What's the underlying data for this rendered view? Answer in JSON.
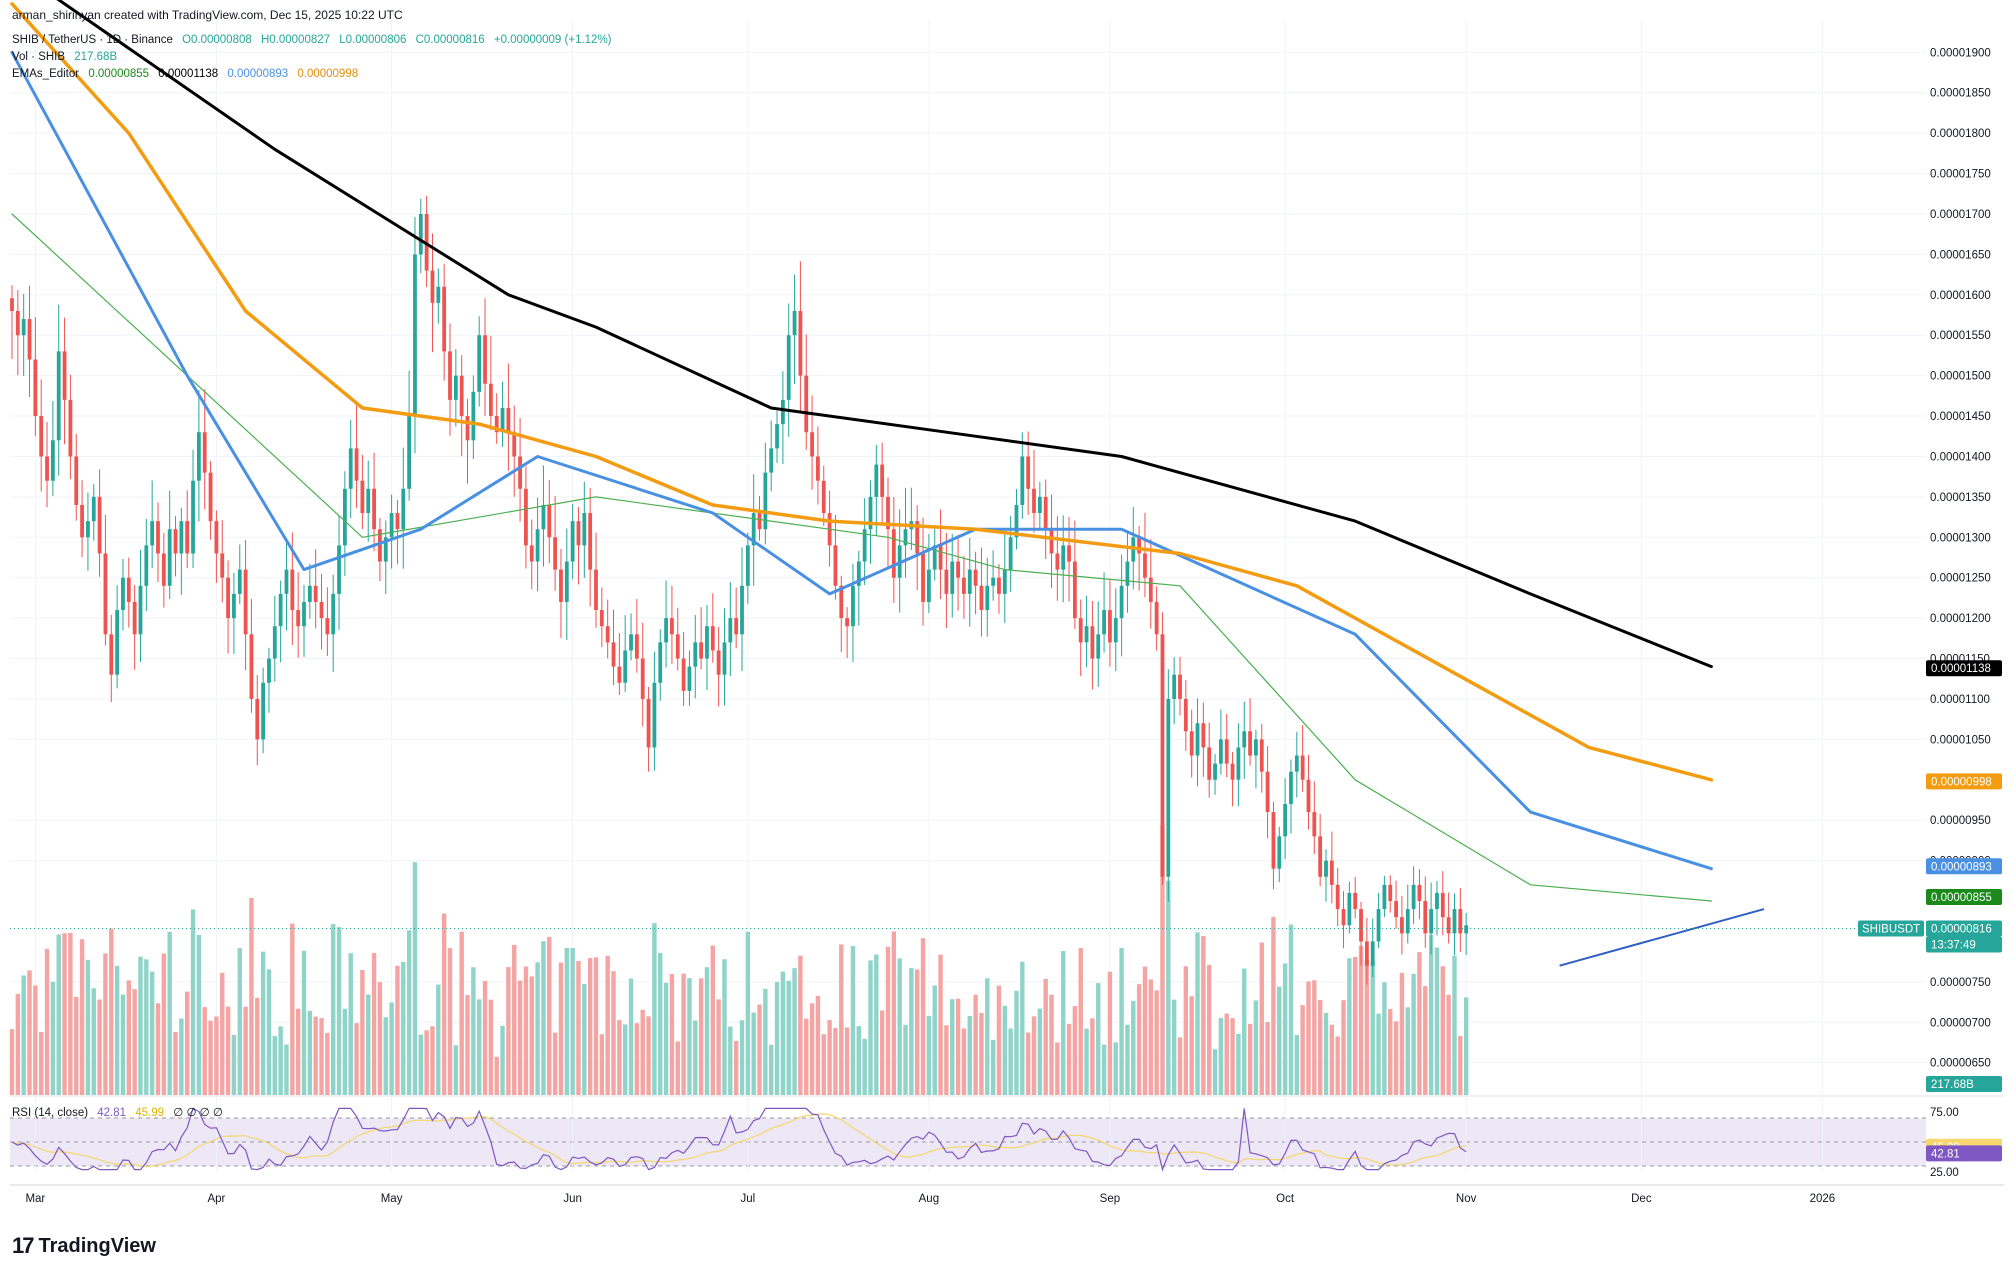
{
  "header": "arman_shirinyan created with TradingView.com, Dec 15, 2025 10:22 UTC",
  "legend": {
    "symbol": "SHIB / TetherUS · 1D · Binance",
    "ohlc": {
      "o": "O0.00000808",
      "h": "H0.00000827",
      "l": "L0.00000806",
      "c": "C0.00000816",
      "chg": "+0.00000009 (+1.12%)"
    },
    "vol_name": "Vol · SHIB",
    "vol_value": "217.68B",
    "ema_name": "EMAs_Editor",
    "ema_values": [
      "0.00000855",
      "0.00001138",
      "0.00000893",
      "0.00000998"
    ],
    "rsi_name": "RSI (14, close)",
    "rsi_value": "42.81",
    "rsi_ma": "45.99",
    "rsi_extra": "∅ ∅ ∅ ∅"
  },
  "brand": "TradingView",
  "colors": {
    "up": "#26a69a",
    "down": "#ef5350",
    "vol_up": "#8fd3c9",
    "vol_down": "#f4a5a3",
    "ema20": "#4caf50",
    "ema50": "#4a90e2",
    "ema100": "#f39c12",
    "ema200": "#000000",
    "rsi": "#7e57c2",
    "rsi_ma": "#f5d76e",
    "rsi_band": "#ede7f6",
    "trend": "#2f5fc4"
  },
  "chart_data": {
    "type": "candlestick",
    "symbol": "SHIBUSDT",
    "price_axis": {
      "ylim": [
        6.1e-06,
        1.94e-05
      ],
      "ticks": [
        "0.00001900",
        "0.00001850",
        "0.00001800",
        "0.00001750",
        "0.00001700",
        "0.00001650",
        "0.00001600",
        "0.00001550",
        "0.00001500",
        "0.00001450",
        "0.00001400",
        "0.00001350",
        "0.00001300",
        "0.00001250",
        "0.00001200",
        "0.00001150",
        "0.00001100",
        "0.00001050",
        "0.00000950",
        "0.00000900",
        "0.00000750",
        "0.00000700",
        "0.00000650"
      ]
    },
    "time_axis": {
      "labels": [
        "Mar",
        "Apr",
        "May",
        "Jun",
        "Jul",
        "Aug",
        "Sep",
        "Oct",
        "Nov",
        "Dec",
        "2026"
      ],
      "label_days": [
        4,
        35,
        65,
        96,
        126,
        157,
        188,
        218,
        249,
        279,
        310
      ]
    },
    "last_price": {
      "symbol": "SHIBUSDT",
      "value": "0.00000816",
      "countdown": "13:37:49"
    },
    "price_tags": [
      {
        "label": "0.00001138",
        "value": 1.138e-05,
        "color": "#000000"
      },
      {
        "label": "0.00000998",
        "value": 9.98e-06,
        "color": "#f39c12"
      },
      {
        "label": "0.00000893",
        "value": 8.93e-06,
        "color": "#4a90e2"
      },
      {
        "label": "0.00000855",
        "value": 8.55e-06,
        "color": "#1b8a1b"
      }
    ],
    "volume_tag": "217.68B",
    "closes": [
      1.58e-05,
      1.55e-05,
      1.57e-05,
      1.52e-05,
      1.45e-05,
      1.4e-05,
      1.37e-05,
      1.42e-05,
      1.53e-05,
      1.47e-05,
      1.4e-05,
      1.34e-05,
      1.3e-05,
      1.32e-05,
      1.35e-05,
      1.28e-05,
      1.18e-05,
      1.13e-05,
      1.21e-05,
      1.25e-05,
      1.22e-05,
      1.18e-05,
      1.24e-05,
      1.29e-05,
      1.32e-05,
      1.28e-05,
      1.24e-05,
      1.31e-05,
      1.28e-05,
      1.32e-05,
      1.28e-05,
      1.37e-05,
      1.43e-05,
      1.38e-05,
      1.32e-05,
      1.28e-05,
      1.25e-05,
      1.2e-05,
      1.23e-05,
      1.26e-05,
      1.18e-05,
      1.1e-05,
      1.05e-05,
      1.12e-05,
      1.15e-05,
      1.19e-05,
      1.23e-05,
      1.26e-05,
      1.21e-05,
      1.19e-05,
      1.22e-05,
      1.24e-05,
      1.22e-05,
      1.2e-05,
      1.18e-05,
      1.23e-05,
      1.29e-05,
      1.36e-05,
      1.41e-05,
      1.37e-05,
      1.33e-05,
      1.36e-05,
      1.31e-05,
      1.27e-05,
      1.3e-05,
      1.33e-05,
      1.31e-05,
      1.36e-05,
      1.45e-05,
      1.65e-05,
      1.7e-05,
      1.63e-05,
      1.59e-05,
      1.61e-05,
      1.53e-05,
      1.47e-05,
      1.5e-05,
      1.45e-05,
      1.42e-05,
      1.48e-05,
      1.55e-05,
      1.49e-05,
      1.45e-05,
      1.43e-05,
      1.46e-05,
      1.43e-05,
      1.4e-05,
      1.36e-05,
      1.29e-05,
      1.27e-05,
      1.31e-05,
      1.34e-05,
      1.3e-05,
      1.26e-05,
      1.22e-05,
      1.27e-05,
      1.32e-05,
      1.29e-05,
      1.33e-05,
      1.26e-05,
      1.21e-05,
      1.19e-05,
      1.17e-05,
      1.14e-05,
      1.12e-05,
      1.16e-05,
      1.18e-05,
      1.15e-05,
      1.1e-05,
      1.04e-05,
      1.12e-05,
      1.17e-05,
      1.2e-05,
      1.18e-05,
      1.15e-05,
      1.11e-05,
      1.14e-05,
      1.17e-05,
      1.15e-05,
      1.19e-05,
      1.16e-05,
      1.13e-05,
      1.17e-05,
      1.2e-05,
      1.18e-05,
      1.24e-05,
      1.29e-05,
      1.33e-05,
      1.31e-05,
      1.38e-05,
      1.41e-05,
      1.44e-05,
      1.47e-05,
      1.55e-05,
      1.58e-05,
      1.5e-05,
      1.43e-05,
      1.4e-05,
      1.37e-05,
      1.33e-05,
      1.29e-05,
      1.24e-05,
      1.2e-05,
      1.19e-05,
      1.24e-05,
      1.27e-05,
      1.31e-05,
      1.35e-05,
      1.39e-05,
      1.35e-05,
      1.31e-05,
      1.25e-05,
      1.29e-05,
      1.31e-05,
      1.32e-05,
      1.28e-05,
      1.22e-05,
      1.26e-05,
      1.29e-05,
      1.26e-05,
      1.23e-05,
      1.27e-05,
      1.25e-05,
      1.23e-05,
      1.26e-05,
      1.24e-05,
      1.21e-05,
      1.24e-05,
      1.25e-05,
      1.23e-05,
      1.26e-05,
      1.3e-05,
      1.34e-05,
      1.4e-05,
      1.36e-05,
      1.33e-05,
      1.35e-05,
      1.31e-05,
      1.28e-05,
      1.26e-05,
      1.29e-05,
      1.27e-05,
      1.2e-05,
      1.17e-05,
      1.19e-05,
      1.15e-05,
      1.18e-05,
      1.21e-05,
      1.17e-05,
      1.2e-05,
      1.24e-05,
      1.27e-05,
      1.3e-05,
      1.28e-05,
      1.25e-05,
      1.22e-05,
      1.18e-05,
      8.8e-06,
      1.1e-05,
      1.13e-05,
      1.1e-05,
      1.06e-05,
      1.03e-05,
      1.07e-05,
      1.04e-05,
      1e-05,
      1.02e-05,
      1.05e-05,
      1.02e-05,
      1e-05,
      1.04e-05,
      1.06e-05,
      1.03e-05,
      1.05e-05,
      1.01e-05,
      9.6e-06,
      8.9e-06,
      9.3e-06,
      9.7e-06,
      1.01e-05,
      1.03e-05,
      1e-05,
      9.6e-06,
      9.3e-06,
      8.8e-06,
      9e-06,
      8.7e-06,
      8.4e-06,
      8.2e-06,
      8.6e-06,
      8.4e-06,
      8e-06,
      7.7e-06,
      8e-06,
      8.4e-06,
      8.7e-06,
      8.5e-06,
      8.3e-06,
      8.1e-06,
      8.4e-06,
      8.7e-06,
      8.5e-06,
      8.1e-06,
      8.4e-06,
      8.6e-06,
      8.3e-06,
      8.1e-06,
      8.4e-06,
      8.1e-06,
      8.2e-06
    ],
    "ema": {
      "ema20": [
        [
          0,
          1.7e-05
        ],
        [
          60,
          1.3e-05
        ],
        [
          100,
          1.35e-05
        ],
        [
          150,
          1.3e-05
        ],
        [
          170,
          1.26e-05
        ],
        [
          200,
          1.24e-05
        ],
        [
          230,
          1e-05
        ],
        [
          260,
          8.7e-06
        ],
        [
          291,
          8.5e-06
        ]
      ],
      "ema50": [
        [
          0,
          1.9e-05
        ],
        [
          30,
          1.5e-05
        ],
        [
          50,
          1.26e-05
        ],
        [
          70,
          1.31e-05
        ],
        [
          90,
          1.4e-05
        ],
        [
          120,
          1.33e-05
        ],
        [
          140,
          1.23e-05
        ],
        [
          165,
          1.31e-05
        ],
        [
          190,
          1.31e-05
        ],
        [
          230,
          1.18e-05
        ],
        [
          260,
          9.6e-06
        ],
        [
          291,
          8.9e-06
        ]
      ],
      "ema100": [
        [
          0,
          1.96e-05
        ],
        [
          20,
          1.8e-05
        ],
        [
          40,
          1.58e-05
        ],
        [
          60,
          1.46e-05
        ],
        [
          80,
          1.44e-05
        ],
        [
          100,
          1.4e-05
        ],
        [
          120,
          1.34e-05
        ],
        [
          140,
          1.32e-05
        ],
        [
          165,
          1.31e-05
        ],
        [
          200,
          1.28e-05
        ],
        [
          220,
          1.24e-05
        ],
        [
          250,
          1.12e-05
        ],
        [
          270,
          1.04e-05
        ],
        [
          291,
          1e-05
        ]
      ],
      "ema200": [
        [
          5,
          1.98e-05
        ],
        [
          25,
          1.88e-05
        ],
        [
          45,
          1.78e-05
        ],
        [
          65,
          1.69e-05
        ],
        [
          85,
          1.6e-05
        ],
        [
          100,
          1.56e-05
        ],
        [
          130,
          1.46e-05
        ],
        [
          160,
          1.43e-05
        ],
        [
          190,
          1.4e-05
        ],
        [
          210,
          1.36e-05
        ],
        [
          230,
          1.32e-05
        ],
        [
          260,
          1.23e-05
        ],
        [
          291,
          1.14e-05
        ]
      ]
    },
    "trendline": [
      [
        265,
        7.7e-06
      ],
      [
        300,
        8.4e-06
      ]
    ],
    "rsi": {
      "ylim": [
        25,
        75
      ],
      "ticks": [
        "75.00",
        "25.00"
      ],
      "value_label": "42.81",
      "ma_label": "45.99"
    }
  }
}
